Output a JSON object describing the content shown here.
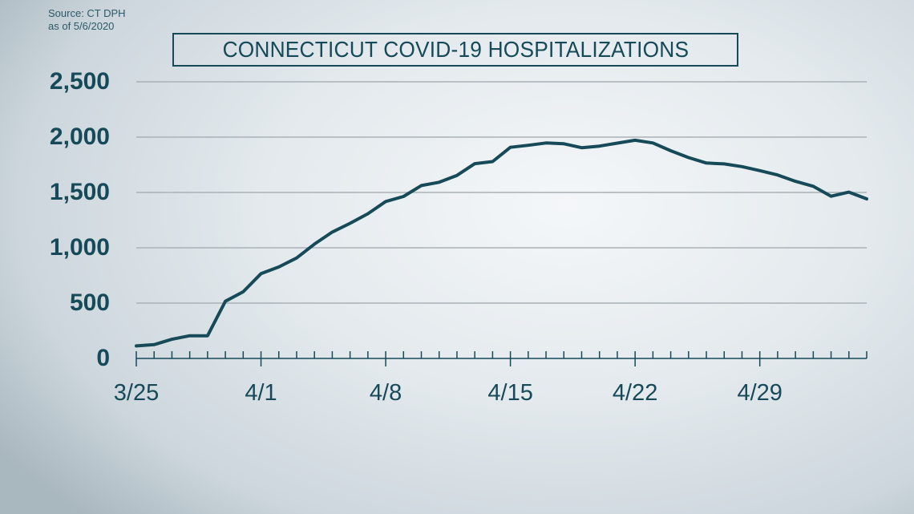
{
  "source": {
    "line1": "Source: CT DPH",
    "line2": "as of 5/6/2020"
  },
  "title": "CONNECTICUT COVID-19 HOSPITALIZATIONS",
  "colors": {
    "line": "#174a58",
    "grid": "#a9b2b7",
    "text": "#174a58"
  },
  "chart_data": {
    "type": "line",
    "title": "CONNECTICUT COVID-19 HOSPITALIZATIONS",
    "subtitle": "Source: CT DPH as of 5/6/2020",
    "xlabel": "",
    "ylabel": "",
    "ylim": [
      0,
      2500
    ],
    "yticks": [
      "0",
      "500",
      "1,000",
      "1,500",
      "2,000",
      "2,500"
    ],
    "ytick_values": [
      0,
      500,
      1000,
      1500,
      2000,
      2500
    ],
    "xtick_labels": [
      "3/25",
      "4/1",
      "4/8",
      "4/15",
      "4/22",
      "4/29"
    ],
    "xtick_day_index": [
      0,
      7,
      14,
      21,
      28,
      35
    ],
    "grid": true,
    "legend": null,
    "x": [
      "3/25",
      "3/26",
      "3/27",
      "3/28",
      "3/29",
      "3/30",
      "3/31",
      "4/1",
      "4/2",
      "4/3",
      "4/4",
      "4/5",
      "4/6",
      "4/7",
      "4/8",
      "4/9",
      "4/10",
      "4/11",
      "4/12",
      "4/13",
      "4/14",
      "4/15",
      "4/16",
      "4/17",
      "4/18",
      "4/19",
      "4/20",
      "4/21",
      "4/22",
      "4/23",
      "4/24",
      "4/25",
      "4/26",
      "4/27",
      "4/28",
      "4/29",
      "4/30",
      "5/1",
      "5/2",
      "5/3",
      "5/4",
      "5/5"
    ],
    "series": [
      {
        "name": "Hospitalizations",
        "values": [
          113,
          125,
          173,
          205,
          205,
          517,
          602,
          766,
          827,
          908,
          1033,
          1142,
          1221,
          1308,
          1418,
          1464,
          1562,
          1592,
          1654,
          1760,
          1779,
          1908,
          1926,
          1947,
          1940,
          1904,
          1919,
          1946,
          1972,
          1947,
          1877,
          1815,
          1766,
          1758,
          1733,
          1697,
          1658,
          1601,
          1556,
          1466,
          1503,
          1442
        ]
      }
    ]
  }
}
